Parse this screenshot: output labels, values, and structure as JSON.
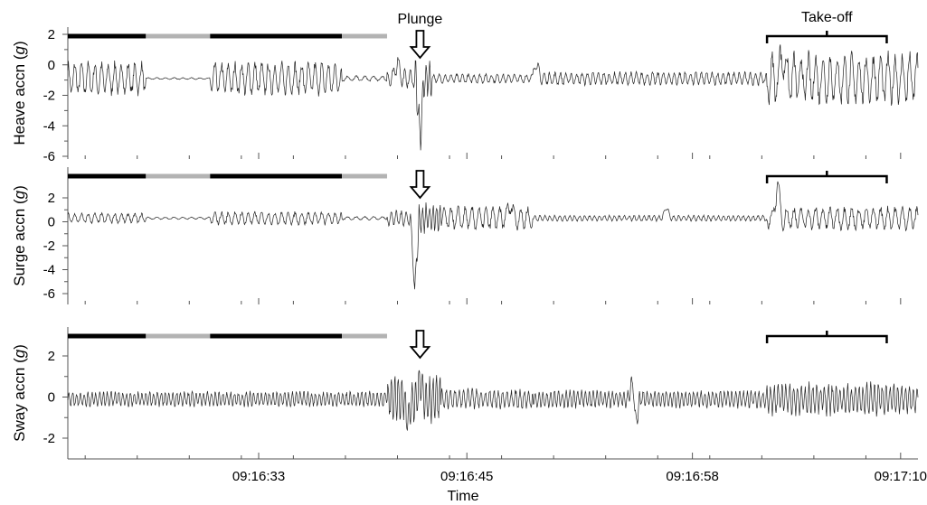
{
  "chart_data": {
    "type": "line",
    "xlabel": "Time",
    "x_tick_labels": [
      "09:16:33",
      "09:16:45",
      "09:16:58",
      "09:17:10"
    ],
    "x_range_seconds": [
      22,
      71
    ],
    "annotations": {
      "plunge": "Plunge",
      "takeoff": "Take-off"
    },
    "phase_bar_colors": {
      "dark": "#000000",
      "light": "#b3b3b3"
    },
    "phase_bar_segments": [
      {
        "color": "dark",
        "from": 22,
        "to": 26.5
      },
      {
        "color": "light",
        "from": 26.5,
        "to": 30.2
      },
      {
        "color": "dark",
        "from": 30.2,
        "to": 37.8
      },
      {
        "color": "light",
        "from": 37.8,
        "to": 40.4
      }
    ],
    "plunge_time": 42.3,
    "takeoff_range": [
      62.3,
      69.2
    ],
    "panels": [
      {
        "ylabel_prefix": "Heave accn (",
        "ylabel_unit": "g",
        "ylabel_suffix": ")",
        "ylim": [
          -6,
          2
        ],
        "yticks": [
          "2",
          "0",
          "-2",
          "-4",
          "-6"
        ],
        "series": {
          "name": "Heave accn",
          "baseline": -0.9,
          "segments": [
            {
              "from": 22,
              "to": 26.5,
              "amp": 0.9,
              "freq": 2.6
            },
            {
              "from": 26.5,
              "to": 30.2,
              "amp": 0.05,
              "freq": 2.0
            },
            {
              "from": 30.2,
              "to": 37.8,
              "amp": 0.9,
              "freq": 2.6
            },
            {
              "from": 37.8,
              "to": 40.4,
              "amp": 0.15,
              "freq": 2.0
            },
            {
              "from": 40.4,
              "to": 42.0,
              "amp": 0.5,
              "freq": 3.0
            },
            {
              "from": 42.0,
              "to": 43.0,
              "amp": 1.2,
              "freq": 5.0
            },
            {
              "from": 43.0,
              "to": 48.8,
              "amp": 0.25,
              "freq": 3.0
            },
            {
              "from": 48.8,
              "to": 62.3,
              "amp": 0.35,
              "freq": 3.2
            },
            {
              "from": 62.3,
              "to": 69.2,
              "amp": 1.4,
              "freq": 2.4
            }
          ],
          "spikes": [
            [
              42.3,
              -4.8
            ],
            [
              41.0,
              0.3
            ],
            [
              49.0,
              0.2
            ],
            [
              63.2,
              0.9
            ]
          ]
        }
      },
      {
        "ylabel_prefix": "Surge accn (",
        "ylabel_unit": "g",
        "ylabel_suffix": ")",
        "ylim": [
          -7,
          4
        ],
        "yticks": [
          "2",
          "0",
          "-2",
          "-4",
          "-6"
        ],
        "series": {
          "name": "Surge accn",
          "baseline": 0.3,
          "segments": [
            {
              "from": 22,
              "to": 26.5,
              "amp": 0.35,
              "freq": 2.6
            },
            {
              "from": 26.5,
              "to": 30.2,
              "amp": 0.08,
              "freq": 2.0
            },
            {
              "from": 30.2,
              "to": 37.8,
              "amp": 0.45,
              "freq": 2.6
            },
            {
              "from": 37.8,
              "to": 40.4,
              "amp": 0.12,
              "freq": 2.0
            },
            {
              "from": 40.4,
              "to": 42.0,
              "amp": 0.5,
              "freq": 3.5
            },
            {
              "from": 42.0,
              "to": 43.5,
              "amp": 1.0,
              "freq": 5.0
            },
            {
              "from": 43.5,
              "to": 48.8,
              "amp": 0.8,
              "freq": 2.5
            },
            {
              "from": 48.8,
              "to": 62.3,
              "amp": 0.2,
              "freq": 3.5
            },
            {
              "from": 62.3,
              "to": 69.2,
              "amp": 0.8,
              "freq": 2.4
            }
          ],
          "spikes": [
            [
              42.0,
              -5.8
            ],
            [
              62.9,
              3.3
            ],
            [
              47.5,
              1.6
            ],
            [
              56.5,
              1.3
            ]
          ]
        }
      },
      {
        "ylabel_prefix": "Sway accn (",
        "ylabel_unit": "g",
        "ylabel_suffix": ")",
        "ylim": [
          -3,
          3
        ],
        "yticks": [
          "2",
          "0",
          "-2"
        ],
        "series": {
          "name": "Sway accn",
          "baseline": -0.1,
          "segments": [
            {
              "from": 22,
              "to": 40.4,
              "amp": 0.3,
              "freq": 4.5
            },
            {
              "from": 40.4,
              "to": 43.5,
              "amp": 0.9,
              "freq": 5.0
            },
            {
              "from": 43.5,
              "to": 48.8,
              "amp": 0.4,
              "freq": 4.0
            },
            {
              "from": 48.8,
              "to": 62.3,
              "amp": 0.35,
              "freq": 4.5
            },
            {
              "from": 62.3,
              "to": 69.2,
              "amp": 0.65,
              "freq": 4.5
            }
          ],
          "spikes": [
            [
              54.6,
              1.8
            ],
            [
              54.7,
              -2.2
            ],
            [
              42.3,
              0.9
            ],
            [
              41.6,
              -1.2
            ]
          ]
        }
      }
    ]
  }
}
